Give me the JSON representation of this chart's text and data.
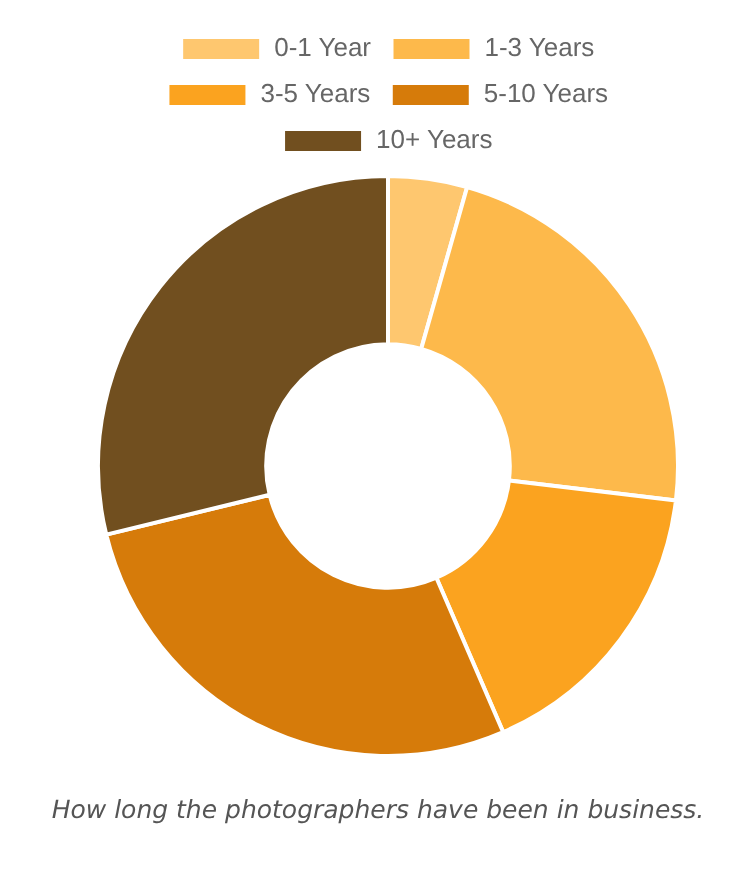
{
  "chart_data": {
    "type": "donut",
    "categories": [
      "0-1 Year",
      "1-3 Years",
      "3-5 Years",
      "5-10 Years",
      "10+ Years"
    ],
    "values": [
      4.4,
      22.5,
      16.6,
      27.7,
      28.8
    ],
    "colors": [
      "#fec76f",
      "#fdb94b",
      "#fba31f",
      "#d67b0a",
      "#714f1f"
    ],
    "legend": "top",
    "annotations": [
      "How long the photographers have been in business."
    ]
  }
}
